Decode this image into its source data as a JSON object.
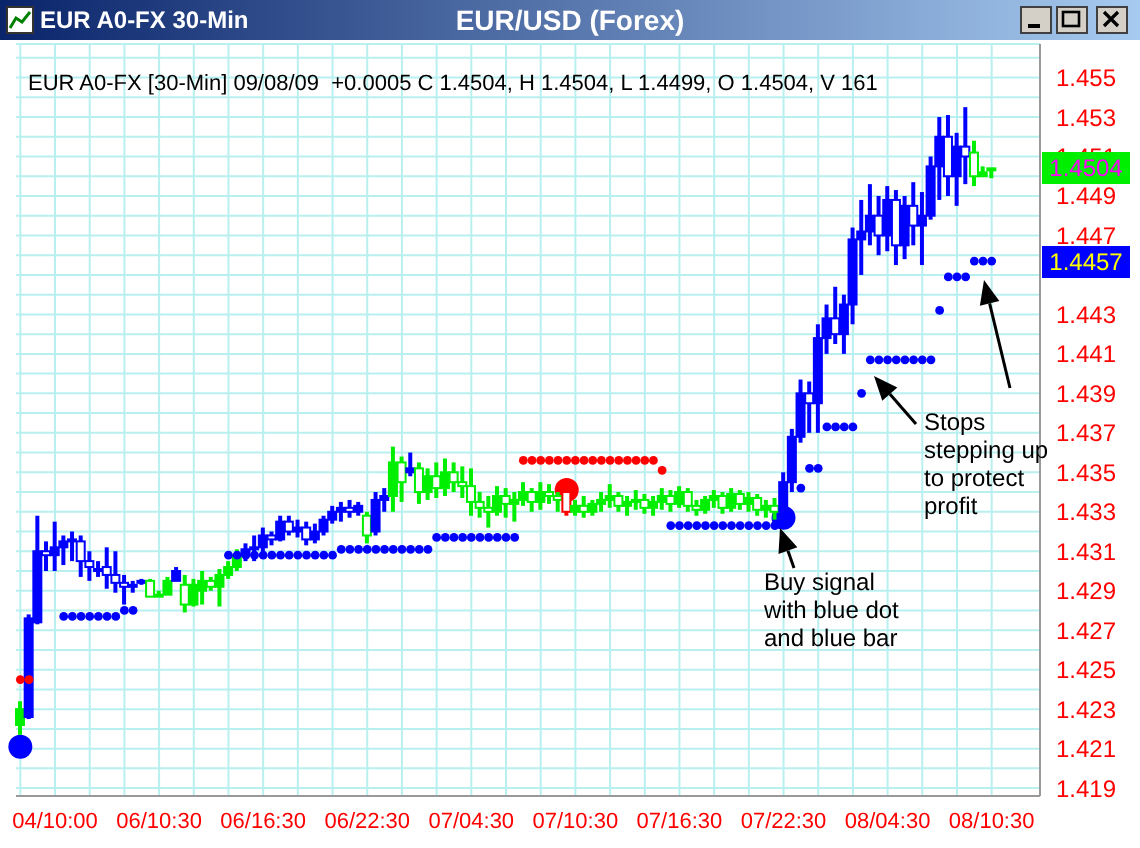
{
  "chart_data": {
    "type": "candlestick",
    "title": "EUR/USD (Forex)",
    "subtitle": "EUR A0-FX [30-Min] 09/08/09  +0.0005 C 1.4504, H 1.4504, L 1.4499, O 1.4504, V 161",
    "annotations": [
      "EUR A0-FX 30-Min",
      "Buy signal with blue dot and blue bar",
      "Stops stepping up to protect profit",
      "1.4504",
      "1.4457"
    ],
    "categories": [
      null,
      null,
      null,
      null,
      "04/10:00",
      null,
      null,
      null,
      null,
      null,
      null,
      null,
      null,
      null,
      null,
      null,
      "06/10:30",
      null,
      null,
      null,
      null,
      null,
      null,
      null,
      null,
      null,
      null,
      null,
      "06/16:30",
      null,
      null,
      null,
      null,
      null,
      null,
      null,
      null,
      null,
      null,
      null,
      "06/22:30",
      null,
      null,
      null,
      null,
      null,
      null,
      null,
      null,
      null,
      null,
      null,
      "07/04:30",
      null,
      null,
      null,
      null,
      null,
      null,
      null,
      null,
      null,
      null,
      null,
      "07/10:30",
      null,
      null,
      null,
      null,
      null,
      null,
      null,
      null,
      null,
      null,
      null,
      "07/16:30",
      null,
      null,
      null,
      null,
      null,
      null,
      null,
      null,
      null,
      null,
      null,
      "07/22:30",
      null,
      null,
      null,
      null,
      null,
      null,
      null,
      null,
      null,
      null,
      null,
      "08/04:30",
      null,
      null,
      null,
      null,
      null,
      null,
      null,
      null,
      null,
      null,
      null,
      "08/10:30"
    ],
    "ohlc": [
      [
        1.4222,
        1.4234,
        1.4217,
        1.423
      ],
      [
        1.4226,
        1.4278,
        1.4225,
        1.4276
      ],
      [
        1.4274,
        1.4328,
        1.4273,
        1.431
      ],
      [
        1.431,
        1.4315,
        1.43,
        1.4308
      ],
      [
        1.4308,
        1.4325,
        1.43,
        1.4312
      ],
      [
        1.4312,
        1.4318,
        1.4303,
        1.4315
      ],
      [
        1.4315,
        1.432,
        1.4305,
        1.4316
      ],
      [
        1.4315,
        1.4318,
        1.4297,
        1.4305
      ],
      [
        1.4305,
        1.431,
        1.4295,
        1.4302
      ],
      [
        1.43,
        1.4305,
        1.4297,
        1.4301
      ],
      [
        1.4302,
        1.4312,
        1.4291,
        1.4298
      ],
      [
        1.4298,
        1.431,
        1.4289,
        1.4294
      ],
      [
        1.4294,
        1.4298,
        1.4283,
        1.4292
      ],
      [
        1.4292,
        1.4295,
        1.4289,
        1.4293
      ],
      [
        1.4294,
        1.4296,
        1.4293,
        1.4295
      ],
      [
        1.4295,
        1.4296,
        1.4287,
        1.4287
      ],
      [
        1.4287,
        1.429,
        1.4287,
        1.4288
      ],
      [
        1.4288,
        1.4297,
        1.4288,
        1.4295
      ],
      [
        1.4295,
        1.4302,
        1.4295,
        1.43
      ],
      [
        1.4293,
        1.4298,
        1.4279,
        1.4283
      ],
      [
        1.4283,
        1.4296,
        1.4282,
        1.4293
      ],
      [
        1.429,
        1.43,
        1.4283,
        1.4295
      ],
      [
        1.4295,
        1.4297,
        1.429,
        1.4292
      ],
      [
        1.4292,
        1.4301,
        1.4282,
        1.4298
      ],
      [
        1.4298,
        1.4305,
        1.4296,
        1.4302
      ],
      [
        1.4302,
        1.4311,
        1.43,
        1.4308
      ],
      [
        1.4308,
        1.4314,
        1.4305,
        1.4311
      ],
      [
        1.4311,
        1.4318,
        1.4305,
        1.4312
      ],
      [
        1.4312,
        1.4322,
        1.431,
        1.4318
      ],
      [
        1.4318,
        1.432,
        1.4313,
        1.4316
      ],
      [
        1.4316,
        1.4328,
        1.4315,
        1.4325
      ],
      [
        1.4325,
        1.4328,
        1.4318,
        1.432
      ],
      [
        1.432,
        1.4326,
        1.4317,
        1.4322
      ],
      [
        1.4322,
        1.4325,
        1.4313,
        1.4316
      ],
      [
        1.4316,
        1.4324,
        1.4314,
        1.432
      ],
      [
        1.432,
        1.4328,
        1.4318,
        1.4326
      ],
      [
        1.4326,
        1.4333,
        1.4324,
        1.433
      ],
      [
        1.433,
        1.4335,
        1.4325,
        1.4332
      ],
      [
        1.4332,
        1.4336,
        1.4327,
        1.433
      ],
      [
        1.433,
        1.4335,
        1.4328,
        1.4333
      ],
      [
        1.4328,
        1.433,
        1.4314,
        1.4318
      ],
      [
        1.432,
        1.434,
        1.4318,
        1.4336
      ],
      [
        1.4336,
        1.4342,
        1.433,
        1.4338
      ],
      [
        1.4338,
        1.4363,
        1.433,
        1.4355
      ],
      [
        1.4355,
        1.4358,
        1.4335,
        1.4345
      ],
      [
        1.435,
        1.436,
        1.4348,
        1.4352
      ],
      [
        1.4352,
        1.4355,
        1.4334,
        1.434
      ],
      [
        1.434,
        1.4352,
        1.4336,
        1.4348
      ],
      [
        1.4348,
        1.4355,
        1.4337,
        1.4342
      ],
      [
        1.4342,
        1.4357,
        1.4338,
        1.435
      ],
      [
        1.435,
        1.4355,
        1.434,
        1.4345
      ],
      [
        1.4345,
        1.4353,
        1.4337,
        1.4343
      ],
      [
        1.4343,
        1.4352,
        1.4328,
        1.4335
      ],
      [
        1.4335,
        1.434,
        1.4327,
        1.4332
      ],
      [
        1.4332,
        1.4338,
        1.4322,
        1.433
      ],
      [
        1.433,
        1.4343,
        1.4328,
        1.4338
      ],
      [
        1.4338,
        1.4342,
        1.4327,
        1.4334
      ],
      [
        1.4334,
        1.434,
        1.4325,
        1.4336
      ],
      [
        1.4336,
        1.4345,
        1.4333,
        1.434
      ],
      [
        1.434,
        1.4342,
        1.433,
        1.4335
      ],
      [
        1.4335,
        1.4345,
        1.4331,
        1.434
      ],
      [
        1.434,
        1.4344,
        1.4334,
        1.4338
      ],
      [
        1.4338,
        1.434,
        1.433,
        1.4336
      ],
      [
        1.434,
        1.4342,
        1.4328,
        1.433
      ],
      [
        1.433,
        1.4336,
        1.4328,
        1.4333
      ],
      [
        1.4333,
        1.4338,
        1.4327,
        1.433
      ],
      [
        1.433,
        1.4336,
        1.4328,
        1.4334
      ],
      [
        1.4334,
        1.434,
        1.433,
        1.4336
      ],
      [
        1.4336,
        1.4344,
        1.4332,
        1.4338
      ],
      [
        1.4338,
        1.434,
        1.433,
        1.4333
      ],
      [
        1.4333,
        1.4338,
        1.4328,
        1.4335
      ],
      [
        1.4335,
        1.4341,
        1.4331,
        1.4336
      ],
      [
        1.4336,
        1.4339,
        1.4329,
        1.4332
      ],
      [
        1.4332,
        1.4338,
        1.4328,
        1.4335
      ],
      [
        1.4335,
        1.4342,
        1.4331,
        1.4338
      ],
      [
        1.4338,
        1.4341,
        1.433,
        1.4334
      ],
      [
        1.4334,
        1.4343,
        1.4332,
        1.434
      ],
      [
        1.434,
        1.4342,
        1.433,
        1.4333
      ],
      [
        1.4333,
        1.4336,
        1.4328,
        1.4331
      ],
      [
        1.4331,
        1.4338,
        1.4329,
        1.4336
      ],
      [
        1.4336,
        1.4341,
        1.4332,
        1.4338
      ],
      [
        1.4338,
        1.434,
        1.4329,
        1.4332
      ],
      [
        1.4332,
        1.4342,
        1.433,
        1.4339
      ],
      [
        1.4339,
        1.4341,
        1.4331,
        1.4334
      ],
      [
        1.4334,
        1.434,
        1.433,
        1.4337
      ],
      [
        1.4337,
        1.4339,
        1.4328,
        1.4331
      ],
      [
        1.4331,
        1.4336,
        1.4327,
        1.4333
      ],
      [
        1.4333,
        1.4337,
        1.4326,
        1.433
      ],
      [
        1.433,
        1.435,
        1.4328,
        1.4345
      ],
      [
        1.4345,
        1.4372,
        1.434,
        1.4368
      ],
      [
        1.4368,
        1.4397,
        1.4365,
        1.439
      ],
      [
        1.439,
        1.4396,
        1.437,
        1.4385
      ],
      [
        1.4385,
        1.4425,
        1.437,
        1.4418
      ],
      [
        1.4418,
        1.4435,
        1.441,
        1.4428
      ],
      [
        1.4428,
        1.4444,
        1.4415,
        1.442
      ],
      [
        1.442,
        1.444,
        1.441,
        1.4435
      ],
      [
        1.4435,
        1.4474,
        1.4425,
        1.4468
      ],
      [
        1.4468,
        1.4488,
        1.445,
        1.4472
      ],
      [
        1.4472,
        1.4496,
        1.4465,
        1.448
      ],
      [
        1.448,
        1.449,
        1.446,
        1.447
      ],
      [
        1.447,
        1.4495,
        1.4462,
        1.4488
      ],
      [
        1.4488,
        1.4493,
        1.4455,
        1.4465
      ],
      [
        1.4465,
        1.449,
        1.4458,
        1.4485
      ],
      [
        1.4485,
        1.4497,
        1.4465,
        1.4475
      ],
      [
        1.4475,
        1.4492,
        1.4455,
        1.448
      ],
      [
        1.448,
        1.451,
        1.4478,
        1.4505
      ],
      [
        1.4505,
        1.453,
        1.4488,
        1.452
      ],
      [
        1.452,
        1.4531,
        1.449,
        1.45
      ],
      [
        1.45,
        1.4522,
        1.4485,
        1.4515
      ],
      [
        1.4515,
        1.4535,
        1.4496,
        1.451
      ],
      [
        1.4512,
        1.4518,
        1.4495,
        1.45
      ],
      [
        1.45,
        1.4505,
        1.45,
        1.4502
      ],
      [
        1.4504,
        1.4504,
        1.4499,
        1.4504
      ]
    ],
    "colors": [
      "#00ee00",
      "#0000ff",
      "#0000ff",
      "#0000ff",
      "#0000ff",
      "#0000ff",
      "#0000ff",
      "#0000ff",
      "#0000ff",
      "#0000ff",
      "#0000ff",
      "#0000ff",
      "#0000ff",
      "#0000ff",
      "#0000ff",
      "#00ee00",
      "#00ee00",
      "#00ee00",
      "#0000ff",
      "#00ee00",
      "#00ee00",
      "#00ee00",
      "#00ee00",
      "#00ee00",
      "#00ee00",
      "#00ee00",
      "#0000ff",
      "#0000ff",
      "#0000ff",
      "#0000ff",
      "#0000ff",
      "#0000ff",
      "#0000ff",
      "#0000ff",
      "#0000ff",
      "#0000ff",
      "#0000ff",
      "#0000ff",
      "#0000ff",
      "#0000ff",
      "#00ee00",
      "#0000ff",
      "#0000ff",
      "#00ee00",
      "#00ee00",
      "#0000ff",
      "#00ee00",
      "#00ee00",
      "#00ee00",
      "#00ee00",
      "#00ee00",
      "#00ee00",
      "#00ee00",
      "#00ee00",
      "#00ee00",
      "#00ee00",
      "#00ee00",
      "#00ee00",
      "#00ee00",
      "#00ee00",
      "#00ee00",
      "#00ee00",
      "#00ee00",
      "#ff0000",
      "#00ee00",
      "#00ee00",
      "#00ee00",
      "#00ee00",
      "#00ee00",
      "#00ee00",
      "#00ee00",
      "#00ee00",
      "#00ee00",
      "#00ee00",
      "#00ee00",
      "#00ee00",
      "#00ee00",
      "#00ee00",
      "#00ee00",
      "#00ee00",
      "#00ee00",
      "#00ee00",
      "#00ee00",
      "#00ee00",
      "#00ee00",
      "#00ee00",
      "#00ee00",
      "#00ee00",
      "#0000ff",
      "#0000ff",
      "#0000ff",
      "#0000ff",
      "#0000ff",
      "#0000ff",
      "#0000ff",
      "#0000ff",
      "#0000ff",
      "#0000ff",
      "#0000ff",
      "#0000ff",
      "#0000ff",
      "#0000ff",
      "#0000ff",
      "#0000ff",
      "#0000ff",
      "#0000ff",
      "#0000ff",
      "#0000ff",
      "#0000ff",
      "#0000ff",
      "#00ee00",
      "#00ee00",
      "#00ee00"
    ],
    "series": [
      {
        "type": "scatter",
        "color": "#0000ff",
        "values": [
          null,
          null,
          null,
          null,
          null,
          1.4277,
          1.4277,
          1.4277,
          1.4277,
          1.4277,
          1.4277,
          1.4277,
          1.428,
          1.428,
          null,
          null,
          null,
          null,
          null,
          null,
          null,
          null,
          null,
          null,
          1.4308,
          1.4308,
          1.4308,
          1.4308,
          1.4308,
          1.4308,
          1.4308,
          1.4308,
          1.4308,
          1.4308,
          1.4308,
          1.4308,
          1.4308,
          1.4311,
          1.4311,
          1.4311,
          1.4311,
          1.4311,
          1.4311,
          1.4311,
          1.4311,
          1.4311,
          1.4311,
          1.4311,
          1.4317,
          1.4317,
          1.4317,
          1.4317,
          1.4317,
          1.4317,
          1.4317,
          1.4317,
          1.4317,
          1.4317,
          null,
          null,
          null,
          null,
          null,
          null,
          null,
          null,
          null,
          null,
          null,
          null,
          null,
          null,
          null,
          null,
          null,
          1.4323,
          1.4323,
          1.4323,
          1.4323,
          1.4323,
          1.4323,
          1.4323,
          1.4323,
          1.4323,
          1.4323,
          1.4323,
          1.4323,
          1.4323,
          null,
          null,
          1.4342,
          1.4352,
          1.4352,
          1.4373,
          1.4373,
          1.4373,
          1.4373,
          1.439,
          1.4407,
          1.4407,
          1.4407,
          1.4407,
          1.4407,
          1.4407,
          1.4407,
          1.4407,
          1.4432,
          1.4449,
          1.4449,
          1.4449,
          1.4457,
          1.4457,
          1.4457
        ]
      },
      {
        "type": "scatter",
        "color": "#ff0000",
        "values": [
          1.4245,
          1.4245,
          null,
          null,
          null,
          null,
          null,
          null,
          null,
          null,
          null,
          null,
          null,
          null,
          null,
          null,
          null,
          null,
          null,
          null,
          null,
          null,
          null,
          null,
          null,
          null,
          null,
          null,
          null,
          null,
          null,
          null,
          null,
          null,
          null,
          null,
          null,
          null,
          null,
          null,
          null,
          null,
          null,
          null,
          null,
          null,
          null,
          null,
          null,
          null,
          null,
          null,
          null,
          null,
          null,
          null,
          null,
          null,
          1.4356,
          1.4356,
          1.4356,
          1.4356,
          1.4356,
          1.4356,
          1.4356,
          1.4356,
          1.4356,
          1.4356,
          1.4356,
          1.4356,
          1.4356,
          1.4356,
          1.4356,
          1.4356,
          1.4351,
          null,
          null,
          null,
          null,
          null,
          null,
          null,
          null,
          null,
          null,
          null,
          null,
          null,
          null,
          null,
          null,
          null,
          null,
          null,
          null,
          null,
          null,
          null,
          null,
          null,
          null,
          null,
          null,
          null,
          null,
          null,
          null,
          null,
          null,
          null,
          null,
          null,
          null
        ]
      },
      {
        "type": "bubble",
        "color": "#0000ff",
        "values": [
          1.4211,
          null,
          null,
          null,
          null,
          null,
          null,
          null,
          null,
          null,
          null,
          null,
          null,
          null,
          null,
          null,
          null,
          null,
          null,
          null,
          null,
          null,
          null,
          null,
          null,
          null,
          null,
          null,
          null,
          null,
          null,
          null,
          null,
          null,
          null,
          null,
          null,
          null,
          null,
          null,
          null,
          null,
          null,
          null,
          null,
          null,
          null,
          null,
          null,
          null,
          null,
          null,
          null,
          null,
          null,
          null,
          null,
          null,
          null,
          null,
          null,
          null,
          null,
          null,
          null,
          null,
          null,
          null,
          null,
          null,
          null,
          null,
          null,
          null,
          null,
          null,
          null,
          null,
          null,
          null,
          null,
          null,
          null,
          null,
          null,
          null,
          null,
          null,
          1.4327,
          null,
          null,
          null,
          null,
          null,
          null,
          null,
          null,
          null,
          null,
          null,
          null,
          null,
          null,
          null,
          null,
          null,
          null,
          null,
          null,
          null,
          null,
          null,
          null
        ],
        "sizes": [
          1,
          null,
          null,
          null,
          null,
          null,
          null,
          null,
          null,
          null,
          null,
          null,
          null,
          null,
          null,
          null,
          null,
          null,
          null,
          null,
          null,
          null,
          null,
          null,
          null,
          null,
          null,
          null,
          null,
          null,
          null,
          null,
          null,
          null,
          null,
          null,
          null,
          null,
          null,
          null,
          null,
          null,
          null,
          null,
          null,
          null,
          null,
          null,
          null,
          null,
          null,
          null,
          null,
          null,
          null,
          null,
          null,
          null,
          null,
          null,
          null,
          null,
          null,
          null,
          null,
          null,
          null,
          null,
          null,
          null,
          null,
          null,
          null,
          null,
          null,
          null,
          null,
          null,
          null,
          null,
          null,
          null,
          null,
          null,
          null,
          null,
          null,
          null,
          1,
          null,
          null,
          null,
          null,
          null,
          null,
          null,
          null,
          null,
          null,
          null,
          null,
          null,
          null,
          null,
          null,
          null,
          null,
          null,
          null,
          null,
          null,
          null,
          null
        ]
      },
      {
        "type": "bubble",
        "color": "#ff0000",
        "values": [
          null,
          null,
          null,
          null,
          null,
          null,
          null,
          null,
          null,
          null,
          null,
          null,
          null,
          null,
          null,
          null,
          null,
          null,
          null,
          null,
          null,
          null,
          null,
          null,
          null,
          null,
          null,
          null,
          null,
          null,
          null,
          null,
          null,
          null,
          null,
          null,
          null,
          null,
          null,
          null,
          null,
          null,
          null,
          null,
          null,
          null,
          null,
          null,
          null,
          null,
          null,
          null,
          null,
          null,
          null,
          null,
          null,
          null,
          null,
          null,
          null,
          null,
          null,
          1.4341,
          null,
          null,
          null,
          null,
          null,
          null,
          null,
          null,
          null,
          null,
          null,
          null,
          null,
          null,
          null,
          null,
          null,
          null,
          null,
          null,
          null,
          null,
          null,
          null,
          null,
          null,
          null,
          null,
          null,
          null,
          null,
          null,
          null,
          null,
          null,
          null,
          null,
          null,
          null,
          null,
          null,
          null,
          null,
          null,
          null,
          null,
          null,
          null,
          null
        ],
        "sizes": [
          null,
          null,
          null,
          null,
          null,
          null,
          null,
          null,
          null,
          null,
          null,
          null,
          null,
          null,
          null,
          null,
          null,
          null,
          null,
          null,
          null,
          null,
          null,
          null,
          null,
          null,
          null,
          null,
          null,
          null,
          null,
          null,
          null,
          null,
          null,
          null,
          null,
          null,
          null,
          null,
          null,
          null,
          null,
          null,
          null,
          null,
          null,
          null,
          null,
          null,
          null,
          null,
          null,
          null,
          null,
          null,
          null,
          null,
          null,
          null,
          null,
          null,
          null,
          1,
          null,
          null,
          null,
          null,
          null,
          null,
          null,
          null,
          null,
          null,
          null,
          null,
          null,
          null,
          null,
          null,
          null,
          null,
          null,
          null,
          null,
          null,
          null,
          null,
          null,
          null,
          null,
          null,
          null,
          null,
          null,
          null,
          null,
          null,
          null,
          null,
          null,
          null,
          null,
          null,
          null,
          null,
          null,
          null,
          null,
          null,
          null,
          null,
          null
        ]
      }
    ],
    "ylim": [
      1.4186,
      1.4567
    ],
    "yticks": [
      1.419,
      {
        "value": 1.42,
        "label": null
      },
      1.421,
      {
        "value": 1.422,
        "label": null
      },
      1.423,
      {
        "value": 1.424,
        "label": null
      },
      1.425,
      {
        "value": 1.426,
        "label": null
      },
      1.427,
      {
        "value": 1.428,
        "label": null
      },
      1.429,
      {
        "value": 1.43,
        "label": null
      },
      1.431,
      {
        "value": 1.432,
        "label": null
      },
      1.433,
      {
        "value": 1.434,
        "label": null
      },
      1.435,
      {
        "value": 1.436,
        "label": null
      },
      1.437,
      {
        "value": 1.438,
        "label": null
      },
      1.439,
      {
        "value": 1.44,
        "label": null
      },
      1.441,
      {
        "value": 1.442,
        "label": null
      },
      1.443,
      {
        "value": 1.444,
        "label": null
      },
      {
        "value": 1.445,
        "label": null
      },
      {
        "value": 1.446,
        "label": null
      },
      1.447,
      {
        "value": 1.448,
        "label": null
      },
      1.449,
      {
        "value": 1.45,
        "label": null
      },
      1.451,
      {
        "value": 1.452,
        "label": null
      },
      1.453,
      {
        "value": 1.454,
        "label": null
      },
      1.455,
      {
        "value": 1.456,
        "label": null
      }
    ],
    "grid": true,
    "marker": "circle"
  }
}
